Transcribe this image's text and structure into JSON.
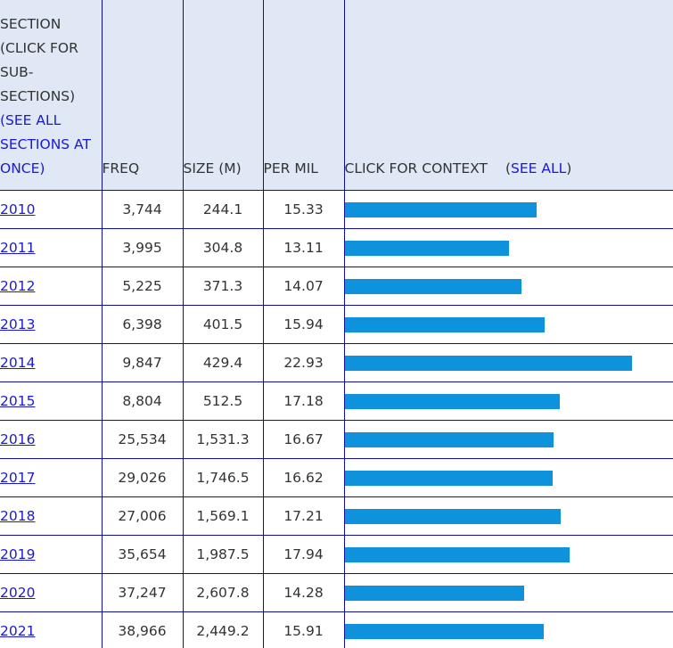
{
  "header": {
    "section_text": "SECTION (CLICK FOR SUB-SECTIONS)",
    "see_all_sections": "(SEE ALL SECTIONS AT ONCE)",
    "freq": "FREQ",
    "size": "SIZE (M)",
    "per_mil": "PER MIL",
    "context": "CLICK FOR CONTEXT",
    "see_all_open": "(",
    "see_all": "SEE ALL",
    "see_all_close": ")"
  },
  "colors": {
    "link": "#1a1ad6",
    "header_bg": "#dfe8f4",
    "bar": "#0f92dc",
    "border": "#1010a0"
  },
  "rows": [
    {
      "section": "2010",
      "freq": "3,744",
      "size": "244.1",
      "per_mil": "15.33",
      "bar_per_mil": 15.33
    },
    {
      "section": "2011",
      "freq": "3,995",
      "size": "304.8",
      "per_mil": "13.11",
      "bar_per_mil": 13.11
    },
    {
      "section": "2012",
      "freq": "5,225",
      "size": "371.3",
      "per_mil": "14.07",
      "bar_per_mil": 14.07
    },
    {
      "section": "2013",
      "freq": "6,398",
      "size": "401.5",
      "per_mil": "15.94",
      "bar_per_mil": 15.94
    },
    {
      "section": "2014",
      "freq": "9,847",
      "size": "429.4",
      "per_mil": "22.93",
      "bar_per_mil": 22.93
    },
    {
      "section": "2015",
      "freq": "8,804",
      "size": "512.5",
      "per_mil": "17.18",
      "bar_per_mil": 17.18
    },
    {
      "section": "2016",
      "freq": "25,534",
      "size": "1,531.3",
      "per_mil": "16.67",
      "bar_per_mil": 16.67
    },
    {
      "section": "2017",
      "freq": "29,026",
      "size": "1,746.5",
      "per_mil": "16.62",
      "bar_per_mil": 16.62
    },
    {
      "section": "2018",
      "freq": "27,006",
      "size": "1,569.1",
      "per_mil": "17.21",
      "bar_per_mil": 17.21
    },
    {
      "section": "2019",
      "freq": "35,654",
      "size": "1,987.5",
      "per_mil": "17.94",
      "bar_per_mil": 17.94
    },
    {
      "section": "2020",
      "freq": "37,247",
      "size": "2,607.8",
      "per_mil": "14.28",
      "bar_per_mil": 14.28
    },
    {
      "section": "2021",
      "freq": "38,966",
      "size": "2,449.2",
      "per_mil": "15.91",
      "bar_per_mil": 15.91
    }
  ]
}
